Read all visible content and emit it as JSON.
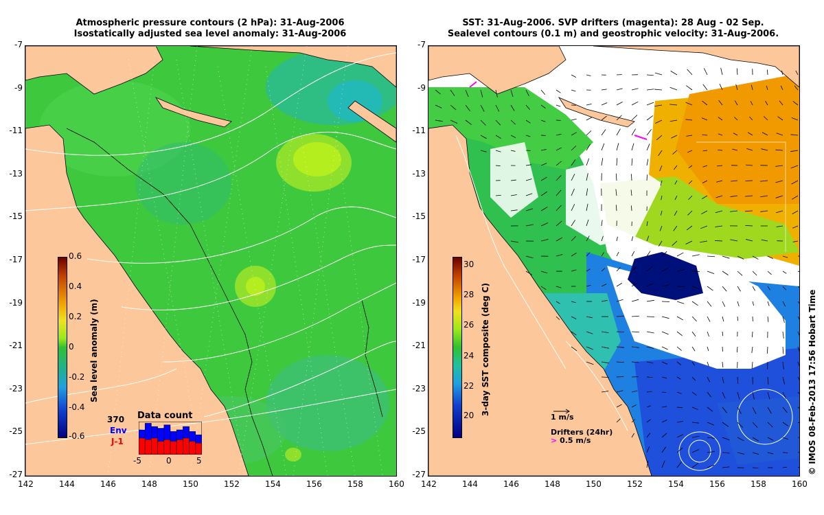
{
  "left_panel": {
    "title_line1": "Atmospheric pressure contours (2 hPa): 31-Aug-2006",
    "title_line2": "Isostatically adjusted sea level anomaly: 31-Aug-2006",
    "colorbar": {
      "label": "Sea level anomaly (m)",
      "ticks": [
        "0.6",
        "0.4",
        "0.2",
        "0",
        "-0.2",
        "-0.4",
        "-0.6"
      ]
    },
    "data_count": {
      "title": "Data count",
      "total": "370",
      "env_label": "Env",
      "j1_label": "J-1",
      "env_color": "#0000ff",
      "j1_color": "#ff0000",
      "ticks": [
        "-5",
        "0",
        "5"
      ],
      "env_values": [
        0.75,
        0.95,
        0.85,
        0.8,
        0.9,
        0.7,
        0.75,
        0.85,
        0.7,
        0.6
      ],
      "j1_values": [
        0.5,
        0.45,
        0.5,
        0.4,
        0.45,
        0.4,
        0.45,
        0.5,
        0.4,
        0.35
      ]
    }
  },
  "right_panel": {
    "title_line1": "SST: 31-Aug-2006. SVP drifters (magenta): 28 Aug - 02 Sep.",
    "title_line2": "Sealevel contours (0.1 m) and geostrophic velocity: 31-Aug-2006.",
    "colorbar": {
      "label": "3-day SST composite (deg C)",
      "ticks": [
        "30",
        "28",
        "26",
        "24",
        "22",
        "20"
      ]
    },
    "velocity_key": "1 m/s",
    "drifters_label": "Drifters (24hr)",
    "drifters_speed": "0.5 m/s",
    "drifter_color": "#ff00ff"
  },
  "axes": {
    "x_ticks": [
      "142",
      "144",
      "146",
      "148",
      "150",
      "152",
      "154",
      "156",
      "158",
      "160"
    ],
    "y_ticks": [
      "-7",
      "-9",
      "-11",
      "-13",
      "-15",
      "-17",
      "-19",
      "-21",
      "-23",
      "-25",
      "-27"
    ],
    "x_range": [
      142,
      160
    ],
    "y_range": [
      -27,
      -7
    ]
  },
  "credit": "© IMOS 08-Feb-2013 17:56 Hobart Time",
  "colors": {
    "land": "#fcc89b",
    "sea_green": "#3ec83e",
    "anomaly_high": "#b4ee1e",
    "sst_orange": "#f0a000",
    "sst_blue": "#1e50dc",
    "sst_navy": "#00107a"
  }
}
